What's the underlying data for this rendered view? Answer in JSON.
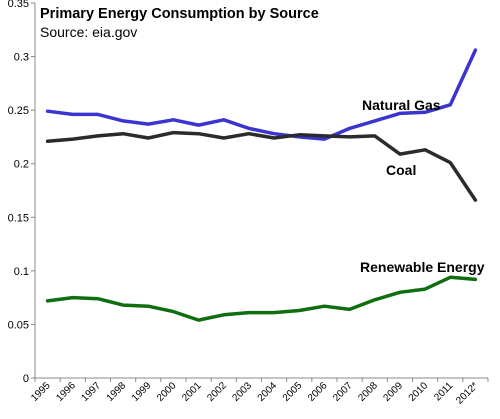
{
  "chart_data": {
    "type": "line",
    "title": "Primary Energy Consumption by Source",
    "subtitle": "Source: eia.gov",
    "xlabel": "",
    "ylabel": "",
    "categories": [
      "1995",
      "1996",
      "1997",
      "1998",
      "1999",
      "2000",
      "2001",
      "2002",
      "2003",
      "2004",
      "2005",
      "2006",
      "2007",
      "2008",
      "2009",
      "2010",
      "2011",
      "2012*"
    ],
    "ylim": [
      0,
      0.35
    ],
    "yticks": [
      0,
      0.05,
      0.1,
      0.15,
      0.2,
      0.25,
      0.3,
      0.35
    ],
    "ytick_labels": [
      "0",
      "0.05",
      "0.1",
      "0.15",
      "0.2",
      "0.25",
      "0.3",
      "0.35"
    ],
    "grid": false,
    "legend": "inline labels",
    "series": [
      {
        "name": "Natural Gas",
        "color": "#3a35d0",
        "values": [
          0.249,
          0.246,
          0.246,
          0.24,
          0.237,
          0.241,
          0.236,
          0.241,
          0.233,
          0.228,
          0.225,
          0.223,
          0.233,
          0.24,
          0.247,
          0.248,
          0.255,
          0.306
        ]
      },
      {
        "name": "Coal",
        "color": "#2b2b2b",
        "values": [
          0.221,
          0.223,
          0.226,
          0.228,
          0.224,
          0.229,
          0.228,
          0.224,
          0.228,
          0.224,
          0.227,
          0.226,
          0.225,
          0.226,
          0.209,
          0.213,
          0.201,
          0.166
        ]
      },
      {
        "name": "Renewable Energy",
        "color": "#0f6e0f",
        "values": [
          0.072,
          0.075,
          0.074,
          0.068,
          0.067,
          0.062,
          0.054,
          0.059,
          0.061,
          0.061,
          0.063,
          0.067,
          0.064,
          0.073,
          0.08,
          0.083,
          0.094,
          0.092
        ]
      }
    ]
  }
}
